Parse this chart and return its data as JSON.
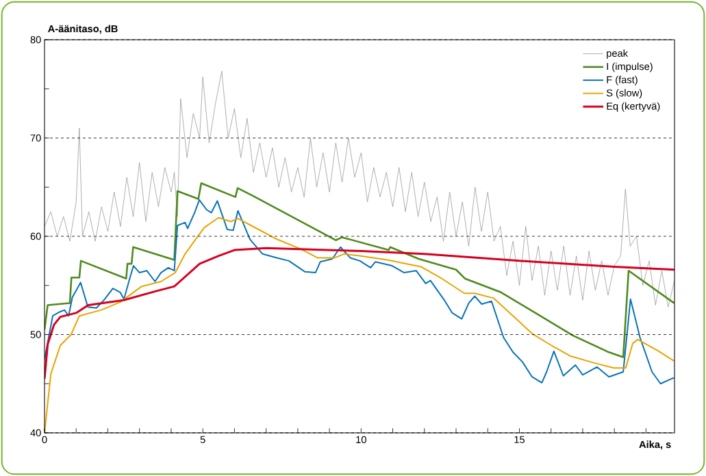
{
  "chart_data": {
    "type": "line",
    "xlabel": "Aika, s",
    "ylabel": "A-äänitaso, dB",
    "xlim": [
      0,
      19.9
    ],
    "ylim": [
      40,
      80
    ],
    "xticks": [
      0,
      {
        "value": 1,
        "label": null
      },
      {
        "value": 2,
        "label": null
      },
      {
        "value": 3,
        "label": null
      },
      {
        "value": 4,
        "label": null
      },
      5,
      {
        "value": 6,
        "label": null
      },
      {
        "value": 7,
        "label": null
      },
      {
        "value": 8,
        "label": null
      },
      {
        "value": 9,
        "label": null
      },
      10,
      {
        "value": 11,
        "label": null
      },
      {
        "value": 12,
        "label": null
      },
      {
        "value": 13,
        "label": null
      },
      {
        "value": 14,
        "label": null
      },
      15,
      {
        "value": 16,
        "label": null
      },
      {
        "value": 17,
        "label": null
      },
      {
        "value": 18,
        "label": null
      },
      {
        "value": 19,
        "label": null
      }
    ],
    "yticks": [
      40,
      {
        "value": 45,
        "label": null
      },
      50,
      {
        "value": 55,
        "label": null
      },
      60,
      {
        "value": 65,
        "label": null
      },
      70,
      {
        "value": 75,
        "label": null
      },
      80
    ],
    "grid": "y",
    "legend": "top right",
    "marker": "none",
    "series": [
      {
        "name": "peak",
        "color": "#8c8c8c",
        "x": [
          0,
          0.2,
          0.4,
          0.6,
          0.8,
          1.0,
          1.1,
          1.2,
          1.4,
          1.6,
          1.8,
          2.0,
          2.2,
          2.4,
          2.6,
          2.8,
          3.0,
          3.2,
          3.4,
          3.6,
          3.8,
          4.0,
          4.1,
          4.2,
          4.3,
          4.5,
          4.7,
          4.9,
          5.0,
          5.2,
          5.4,
          5.6,
          5.8,
          6.0,
          6.2,
          6.4,
          6.6,
          6.8,
          7.0,
          7.2,
          7.4,
          7.6,
          7.8,
          8.0,
          8.2,
          8.4,
          8.6,
          8.8,
          9.0,
          9.2,
          9.4,
          9.6,
          9.8,
          10.0,
          10.2,
          10.4,
          10.6,
          10.8,
          11.0,
          11.2,
          11.4,
          11.6,
          11.8,
          12.0,
          12.2,
          12.4,
          12.6,
          12.8,
          13.0,
          13.2,
          13.4,
          13.6,
          13.8,
          14.0,
          14.2,
          14.4,
          14.6,
          14.8,
          15.0,
          15.2,
          15.4,
          15.6,
          15.8,
          16.0,
          16.2,
          16.4,
          16.6,
          16.8,
          17.0,
          17.2,
          17.4,
          17.6,
          17.8,
          18.0,
          18.2,
          18.35,
          18.5,
          18.7,
          18.9,
          19.1,
          19.3,
          19.5,
          19.7,
          19.9
        ],
        "values": [
          61.0,
          62.5,
          60.0,
          62.0,
          59.5,
          63.5,
          71.0,
          60.0,
          62.5,
          59.5,
          63.0,
          60.5,
          64.5,
          61.0,
          66.0,
          62.0,
          67.5,
          61.5,
          66.5,
          63.0,
          67.0,
          64.5,
          66.5,
          62.0,
          74.0,
          68.0,
          72.5,
          70.0,
          76.2,
          69.5,
          73.5,
          76.8,
          70.0,
          73.0,
          68.0,
          72.0,
          66.5,
          69.5,
          66.0,
          69.0,
          65.0,
          68.0,
          64.5,
          67.0,
          64.0,
          70.0,
          65.0,
          68.5,
          64.5,
          69.5,
          65.5,
          70.0,
          66.0,
          68.5,
          63.5,
          67.0,
          64.0,
          66.5,
          63.0,
          67.0,
          62.5,
          66.5,
          62.0,
          65.5,
          61.5,
          64.0,
          59.5,
          64.5,
          60.0,
          63.5,
          59.0,
          65.0,
          60.5,
          64.5,
          59.5,
          61.0,
          56.0,
          59.5,
          55.0,
          61.0,
          55.5,
          59.0,
          54.0,
          58.5,
          54.5,
          59.0,
          54.0,
          58.0,
          53.5,
          58.5,
          54.5,
          57.5,
          54.0,
          57.0,
          58.0,
          64.8,
          59.0,
          60.0,
          55.0,
          57.5,
          53.0,
          56.5,
          52.8,
          55.5
        ]
      },
      {
        "name": "I (impulse)",
        "color": "#4e8a1e",
        "x": [
          0,
          0.1,
          0.8,
          0.85,
          1.1,
          1.15,
          2.58,
          2.62,
          2.75,
          2.8,
          4.1,
          4.2,
          4.86,
          4.95,
          6.03,
          6.1,
          6.59,
          9.2,
          9.4,
          10.87,
          10.92,
          11.82,
          13.0,
          13.28,
          14.42,
          15.56,
          16.69,
          17.83,
          18.28,
          18.45,
          19.89
        ],
        "values": [
          50.5,
          53.0,
          53.2,
          55.8,
          55.8,
          57.5,
          55.7,
          57.2,
          57.2,
          58.9,
          57.6,
          64.6,
          63.8,
          65.4,
          64.0,
          64.9,
          64.1,
          59.6,
          59.9,
          58.6,
          58.9,
          57.7,
          56.6,
          55.7,
          54.3,
          52.1,
          49.9,
          48.2,
          47.7,
          56.5,
          53.2
        ]
      },
      {
        "name": "F (fast)",
        "color": "#0a72b8",
        "x": [
          0,
          0.26,
          0.48,
          0.63,
          0.76,
          0.88,
          1.14,
          1.37,
          1.64,
          1.9,
          2.16,
          2.39,
          2.51,
          2.7,
          2.81,
          3.0,
          3.23,
          3.49,
          3.68,
          3.91,
          4.1,
          4.2,
          4.44,
          4.52,
          4.74,
          4.89,
          5.12,
          5.27,
          5.46,
          5.77,
          5.96,
          6.11,
          6.49,
          6.7,
          6.89,
          7.34,
          7.72,
          8.22,
          8.56,
          8.71,
          9.09,
          9.35,
          9.66,
          9.96,
          10.3,
          10.45,
          10.98,
          11.36,
          11.74,
          12.04,
          12.19,
          12.65,
          12.88,
          13.18,
          13.4,
          13.59,
          13.81,
          14.12,
          14.5,
          14.8,
          15.1,
          15.4,
          15.71,
          15.86,
          16.09,
          16.39,
          16.77,
          17.0,
          17.45,
          17.83,
          18.28,
          18.51,
          18.81,
          19.19,
          19.46,
          19.8,
          19.89
        ],
        "values": [
          47.5,
          51.9,
          52.3,
          52.5,
          51.9,
          53.8,
          55.3,
          52.8,
          52.7,
          53.6,
          54.7,
          54.3,
          53.6,
          55.8,
          57.0,
          56.3,
          56.5,
          55.4,
          56.3,
          56.8,
          56.5,
          61.1,
          61.4,
          60.8,
          62.4,
          63.7,
          62.7,
          62.4,
          63.6,
          60.7,
          60.6,
          62.6,
          59.7,
          58.9,
          58.2,
          57.8,
          57.5,
          56.4,
          56.3,
          57.4,
          57.7,
          58.9,
          57.8,
          57.5,
          56.8,
          57.4,
          57.0,
          56.3,
          56.5,
          55.2,
          55.5,
          53.4,
          52.2,
          51.6,
          53.2,
          53.9,
          53.1,
          53.4,
          49.7,
          48.2,
          47.2,
          45.7,
          45.1,
          46.2,
          48.3,
          45.8,
          46.9,
          45.9,
          46.7,
          45.7,
          46.2,
          53.6,
          49.7,
          46.2,
          45.0,
          45.5,
          45.6
        ]
      },
      {
        "name": "S (slow)",
        "color": "#e8a400",
        "x": [
          0,
          0.2,
          0.5,
          0.84,
          1.1,
          1.79,
          2.39,
          2.73,
          3.07,
          3.68,
          4.13,
          4.44,
          4.82,
          5.05,
          5.5,
          5.88,
          6.11,
          6.7,
          7.34,
          8.1,
          8.63,
          9.15,
          9.46,
          9.99,
          10.83,
          11.89,
          12.5,
          13.26,
          13.59,
          14.19,
          14.8,
          15.4,
          16.01,
          16.62,
          17.38,
          17.98,
          18.36,
          18.58,
          18.74,
          19.35,
          19.89
        ],
        "values": [
          40.0,
          46.0,
          48.9,
          50.0,
          51.9,
          52.5,
          53.3,
          54.1,
          54.9,
          55.4,
          56.3,
          58.2,
          59.9,
          60.9,
          61.9,
          61.5,
          61.8,
          60.8,
          59.7,
          58.7,
          57.8,
          57.8,
          58.2,
          58.0,
          57.6,
          56.9,
          55.8,
          54.2,
          54.2,
          53.7,
          51.9,
          50.1,
          48.9,
          47.8,
          47.1,
          46.6,
          46.6,
          49.1,
          49.5,
          48.4,
          47.3
        ]
      },
      {
        "name": "Eq (kertyvä)",
        "color": "#d7001e",
        "x": [
          0,
          0.1,
          0.3,
          0.5,
          1.0,
          1.38,
          2.5,
          3.5,
          4.1,
          4.9,
          5.5,
          6.0,
          7.0,
          10.0,
          12.0,
          15.0,
          18.0,
          19.9
        ],
        "values": [
          45.5,
          49.0,
          51.0,
          51.8,
          52.2,
          53.0,
          53.5,
          54.4,
          54.9,
          57.2,
          58.0,
          58.6,
          58.8,
          58.5,
          58.2,
          57.5,
          56.9,
          56.6
        ]
      }
    ]
  }
}
